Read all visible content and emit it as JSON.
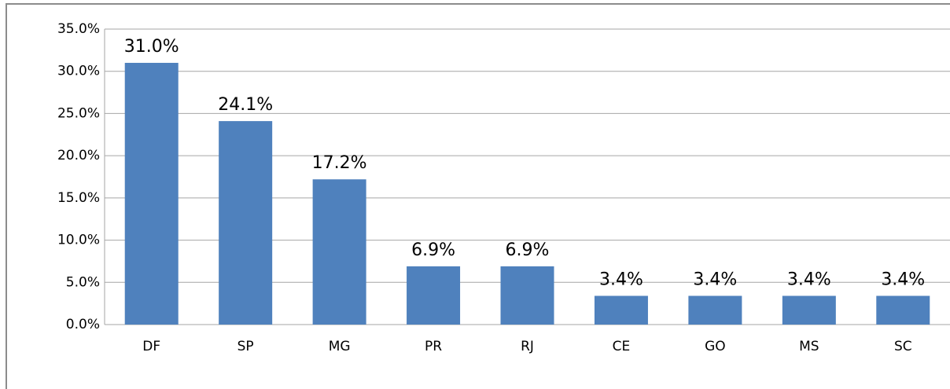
{
  "chart_data": {
    "type": "bar",
    "categories": [
      "DF",
      "SP",
      "MG",
      "PR",
      "RJ",
      "CE",
      "GO",
      "MS",
      "SC"
    ],
    "values": [
      31.0,
      24.1,
      17.2,
      6.9,
      6.9,
      3.4,
      3.4,
      3.4,
      3.4
    ],
    "value_labels": [
      "31.0%",
      "24.1%",
      "17.2%",
      "6.9%",
      "6.9%",
      "3.4%",
      "3.4%",
      "3.4%",
      "3.4%"
    ],
    "color": "#4f81bd",
    "ylim": [
      0,
      35
    ],
    "yticks": [
      {
        "value": 0,
        "label": "0.0%"
      },
      {
        "value": 5,
        "label": "5.0%"
      },
      {
        "value": 10,
        "label": "10.0%"
      },
      {
        "value": 15,
        "label": "15.0%"
      },
      {
        "value": 20,
        "label": "20.0%"
      },
      {
        "value": 25,
        "label": "25.0%"
      },
      {
        "value": 30,
        "label": "30.0%"
      },
      {
        "value": 35,
        "label": "35.0%"
      }
    ],
    "grid": true
  }
}
